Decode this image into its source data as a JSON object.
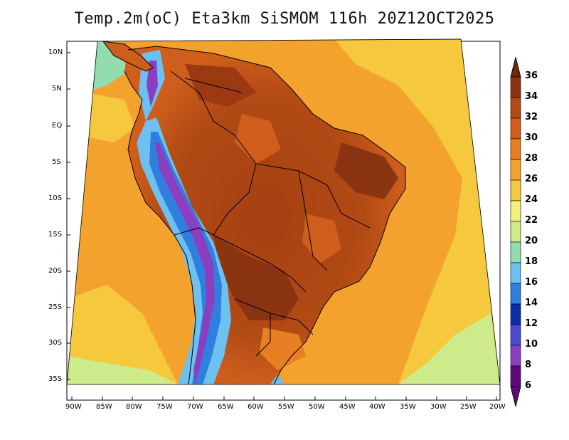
{
  "title": "Temp.2m(oC) Eta3km SiSMOM 116h 20Z12OCT2025",
  "lat_labels": [
    "10N",
    "5N",
    "EQ",
    "5S",
    "10S",
    "15S",
    "20S",
    "25S",
    "30S",
    "35S"
  ],
  "lon_labels": [
    "90W",
    "85W",
    "80W",
    "75W",
    "70W",
    "65W",
    "60W",
    "55W",
    "50W",
    "45W",
    "40W",
    "35W",
    "30W",
    "25W",
    "20W"
  ],
  "colorbar": {
    "labels": [
      "36",
      "34",
      "32",
      "30",
      "28",
      "26",
      "24",
      "22",
      "20",
      "18",
      "16",
      "14",
      "12",
      "10",
      "8",
      "6"
    ],
    "colors": [
      "#6b2a10",
      "#8a3412",
      "#b24a14",
      "#cf5e1c",
      "#e87f22",
      "#f2a22d",
      "#f6c83e",
      "#f6ef7c",
      "#cdeb8a",
      "#93dbb0",
      "#6cc1f0",
      "#2f7fdf",
      "#0b2fa6",
      "#4a4ad0",
      "#8a3fc0",
      "#5e0a7a"
    ]
  },
  "legend_colors": {
    "ocean_warm": "#f2a22d",
    "ocean_mid": "#f6c83e",
    "ocean_cool": "#f6ef7c",
    "land_hot": "#b24a14",
    "land_very_hot": "#8a3412",
    "andes_cold": "#2f7fdf",
    "andes_peak": "#8a3fc0",
    "border": "#000000"
  }
}
